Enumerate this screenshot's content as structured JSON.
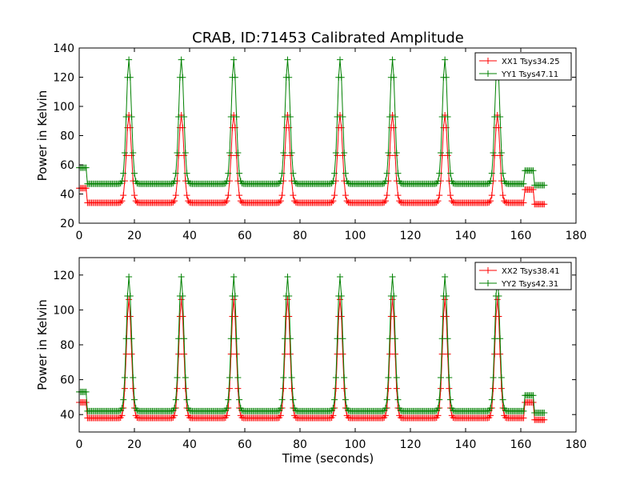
{
  "figure": {
    "title": "CRAB, ID:71453 Calibrated Amplitude",
    "xlabel": "Time (seconds)"
  },
  "chart_data": [
    {
      "type": "line",
      "ylabel": "Power in Kelvin",
      "xlim": [
        0,
        180
      ],
      "ylim": [
        20,
        140
      ],
      "xticks": [
        0,
        20,
        40,
        60,
        80,
        100,
        120,
        140,
        160,
        180
      ],
      "yticks": [
        20,
        40,
        60,
        80,
        100,
        120,
        140
      ],
      "grid": false,
      "legend_position": "top-right",
      "marker": "+",
      "peak_times": [
        18,
        37,
        56,
        75.5,
        94.5,
        113.5,
        132.5,
        151.5
      ],
      "series": [
        {
          "name": "XX1 Tsys34.25",
          "color": "#ff0000",
          "baseline": 34,
          "peak": 94,
          "edge_start": 44,
          "edge_end": 43,
          "end_level": 33
        },
        {
          "name": "YY1 Tsys47.11",
          "color": "#008000",
          "baseline": 47,
          "peak": 132,
          "edge_start": 58,
          "edge_end": 56,
          "end_level": 46
        }
      ]
    },
    {
      "type": "line",
      "ylabel": "Power in Kelvin",
      "xlim": [
        0,
        180
      ],
      "ylim": [
        30,
        130
      ],
      "xticks": [
        0,
        20,
        40,
        60,
        80,
        100,
        120,
        140,
        160,
        180
      ],
      "yticks": [
        40,
        60,
        80,
        100,
        120
      ],
      "grid": false,
      "legend_position": "top-right",
      "marker": "+",
      "peak_times": [
        18,
        37,
        56,
        75.5,
        94.5,
        113.5,
        132.5,
        151.5
      ],
      "series": [
        {
          "name": "XX2 Tsys38.41",
          "color": "#ff0000",
          "baseline": 38,
          "peak": 106,
          "edge_start": 47,
          "edge_end": 47,
          "end_level": 37
        },
        {
          "name": "YY2 Tsys42.31",
          "color": "#008000",
          "baseline": 42,
          "peak": 119,
          "edge_start": 53,
          "edge_end": 51,
          "end_level": 41
        }
      ]
    }
  ]
}
